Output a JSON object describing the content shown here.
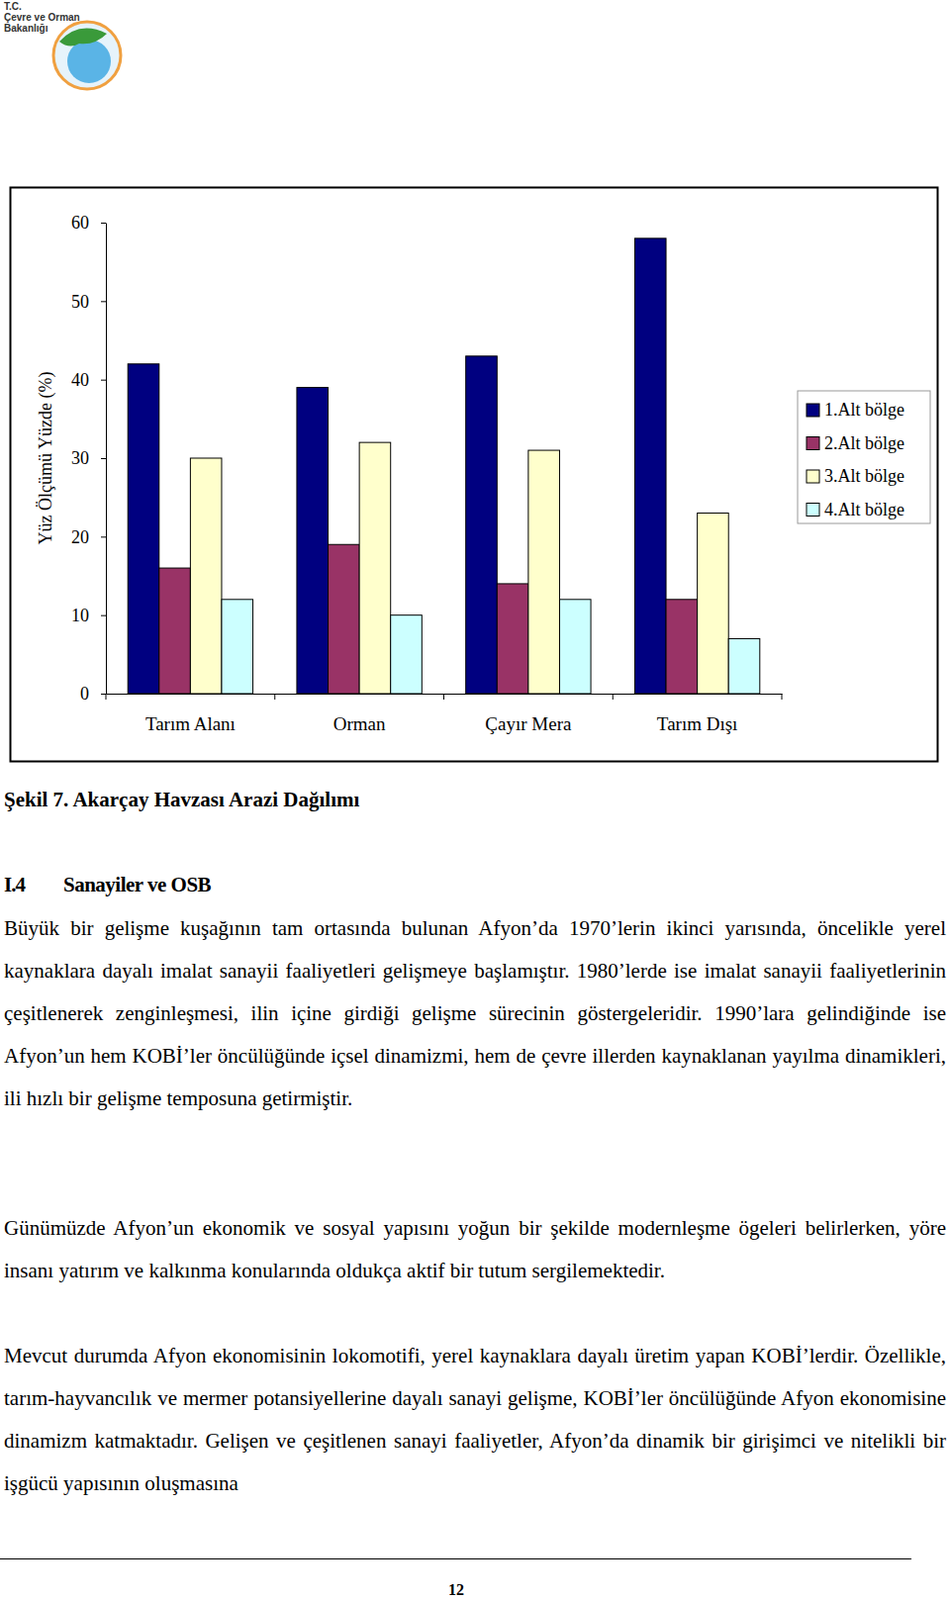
{
  "header": {
    "logo_text": [
      "T.C.",
      "Çevre ve Orman",
      "Bakanlığı"
    ]
  },
  "chart_data": {
    "type": "bar",
    "y_label": "Yüz Ölçümü Yüzde (%)",
    "categories": [
      "Tarım Alanı",
      "Orman",
      "Çayır Mera",
      "Tarım Dışı"
    ],
    "series": [
      {
        "name": "1.Alt bölge",
        "color": "#000080",
        "values": [
          42,
          39,
          43,
          58
        ]
      },
      {
        "name": "2.Alt bölge",
        "color": "#993366",
        "values": [
          16,
          19,
          14,
          12
        ]
      },
      {
        "name": "3.Alt bölge",
        "color": "#FFFFCC",
        "values": [
          30,
          32,
          31,
          23
        ]
      },
      {
        "name": "4.Alt bölge",
        "color": "#CCFFFF",
        "values": [
          12,
          10,
          12,
          7
        ]
      }
    ],
    "ylim": [
      0,
      60
    ],
    "yticks": [
      0,
      10,
      20,
      30,
      40,
      50,
      60
    ],
    "grid": false,
    "legend": "right"
  },
  "caption": "Şekil 7. Akarçay Havzası Arazi Dağılımı",
  "section": {
    "number": "I.4",
    "title": "Sanayiler ve OSB",
    "paragraphs": [
      "Büyük bir gelişme kuşağının tam ortasında bulunan Afyon’da 1970’lerin ikinci yarısında, öncelikle yerel kaynaklara dayalı imalat sanayii faaliyetleri gelişmeye başlamıştır. 1980’lerde ise imalat sanayii faaliyetlerinin çeşitlenerek zenginleşmesi, ilin içine girdiği gelişme sürecinin göstergeleridir. 1990’lara gelindiğinde ise Afyon’un hem KOBİ’ler öncülüğünde içsel dinamizmi, hem de çevre illerden kaynaklanan yayılma dinamikleri, ili hızlı bir gelişme temposuna getirmiştir.",
      "Günümüzde Afyon’un ekonomik ve sosyal yapısını yoğun bir şekilde modernleşme ögeleri belirlerken, yöre insanı yatırım ve kalkınma konularında oldukça aktif bir tutum sergilemektedir.",
      "Mevcut durumda Afyon ekonomisinin lokomotifi, yerel kaynaklara dayalı üretim yapan KOBİ’lerdir. Özellikle, tarım-hayvancılık ve mermer potansiyellerine dayalı sanayi gelişme, KOBİ’ler öncülüğünde Afyon ekonomisine dinamizm katmaktadır. Gelişen ve çeşitlenen sanayi faaliyetler, Afyon’da dinamik bir girişimci ve nitelikli bir işgücü yapısının oluşmasına"
    ]
  },
  "page_number": "12"
}
